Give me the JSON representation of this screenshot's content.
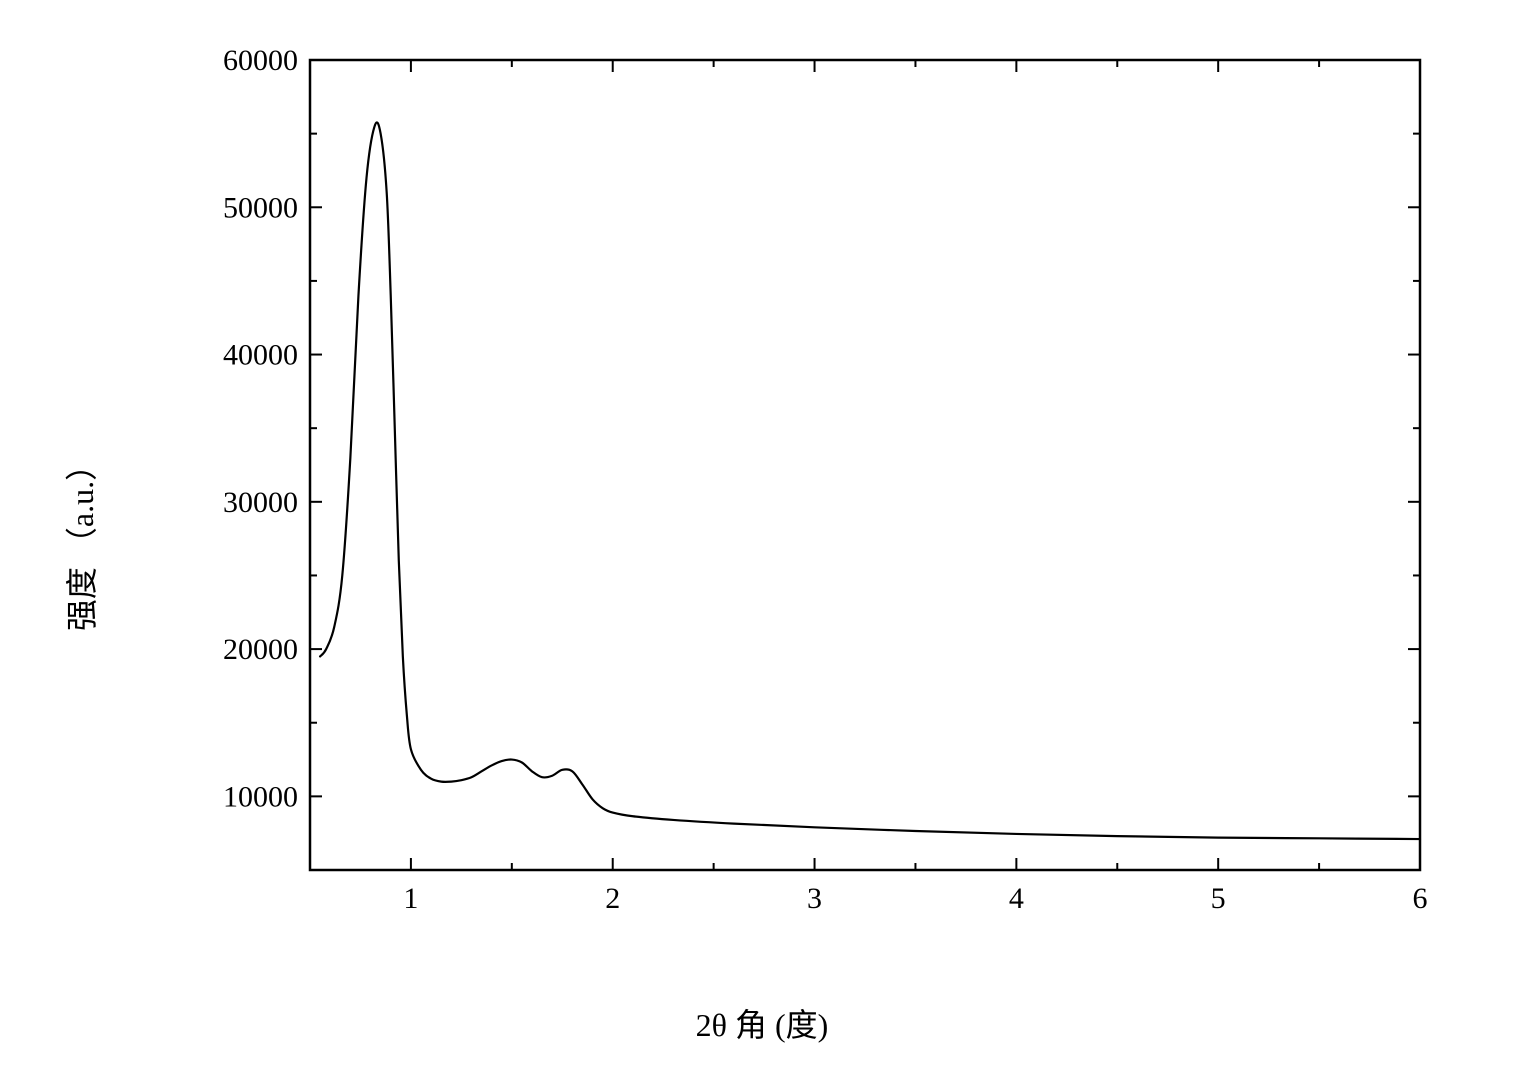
{
  "chart": {
    "type": "line",
    "background_color": "#ffffff",
    "axis_color": "#000000",
    "line_color": "#000000",
    "line_width": 2.2,
    "tick_color": "#000000",
    "tick_width": 2,
    "tick_length_major": 12,
    "tick_length_minor": 7,
    "frame_width": 2.5,
    "xlabel": "2θ 角 (度)",
    "ylabel": "强度 （a.u.）",
    "label_fontsize": 32,
    "tick_fontsize": 30,
    "xlim": [
      0.5,
      6.0
    ],
    "ylim": [
      5000,
      60000
    ],
    "xticks_major": [
      1,
      2,
      3,
      4,
      5,
      6
    ],
    "xtick_labels": [
      "1",
      "2",
      "3",
      "4",
      "5",
      "6"
    ],
    "xticks_minor": [
      0.5,
      1.5,
      2.5,
      3.5,
      4.5,
      5.5
    ],
    "yticks_major": [
      10000,
      20000,
      30000,
      40000,
      50000,
      60000
    ],
    "ytick_labels": [
      "10000",
      "20000",
      "30000",
      "40000",
      "50000",
      "60000"
    ],
    "yticks_minor": [
      5000,
      15000,
      25000,
      35000,
      45000,
      55000
    ],
    "data": {
      "x": [
        0.55,
        0.58,
        0.62,
        0.66,
        0.7,
        0.74,
        0.78,
        0.82,
        0.85,
        0.88,
        0.9,
        0.92,
        0.94,
        0.96,
        0.98,
        1.0,
        1.05,
        1.1,
        1.15,
        1.2,
        1.25,
        1.3,
        1.35,
        1.4,
        1.45,
        1.5,
        1.55,
        1.6,
        1.65,
        1.7,
        1.75,
        1.8,
        1.85,
        1.9,
        1.95,
        2.0,
        2.1,
        2.3,
        2.6,
        3.0,
        3.5,
        4.0,
        4.5,
        5.0,
        5.5,
        6.0
      ],
      "y": [
        19500,
        20000,
        21500,
        25000,
        33000,
        44000,
        52000,
        55500,
        55000,
        51000,
        44000,
        35000,
        26000,
        19500,
        15500,
        13200,
        11800,
        11200,
        11000,
        11000,
        11100,
        11300,
        11700,
        12100,
        12400,
        12500,
        12300,
        11700,
        11300,
        11400,
        11800,
        11700,
        10800,
        9800,
        9200,
        8900,
        8650,
        8400,
        8150,
        7900,
        7650,
        7450,
        7300,
        7200,
        7150,
        7100
      ]
    }
  }
}
